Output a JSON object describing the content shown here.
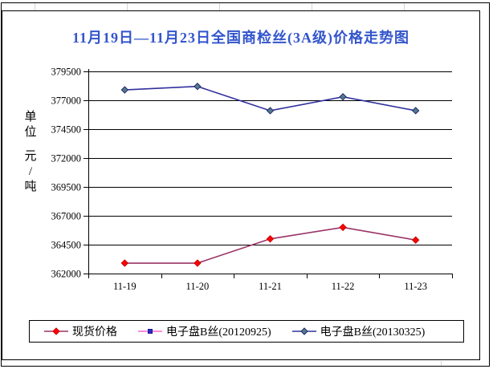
{
  "chart_data": {
    "type": "line",
    "title": "11月19日—11月23日全国商检丝(3A级)价格走势图",
    "title_color": "#3355CC",
    "ylabel": "单位 元/吨",
    "xlabel": "",
    "categories": [
      "11-19",
      "11-20",
      "11-21",
      "11-22",
      "11-23"
    ],
    "ylim": [
      362000,
      379500
    ],
    "yticks": [
      362000,
      364500,
      367000,
      369500,
      372000,
      374500,
      377000,
      379500
    ],
    "grid": "horizontal",
    "legend_position": "bottom",
    "series": [
      {
        "name": "现货价格",
        "values": [
          362900,
          362900,
          365000,
          366000,
          364900
        ],
        "line_color": "#993366",
        "marker": "diamond",
        "marker_fill": "#FF0000",
        "marker_edge": "#CC0000"
      },
      {
        "name": "电子盘B丝(20120925)",
        "values": [],
        "line_color": "#FF66CC",
        "marker": "square",
        "marker_fill": "#2A2ACD",
        "marker_edge": "#1A1A8C"
      },
      {
        "name": "电子盘B丝(20130325)",
        "values": [
          377900,
          378200,
          376100,
          377300,
          376100
        ],
        "line_color": "#30309E",
        "marker": "diamond",
        "marker_fill": "#4F7D8A",
        "marker_edge": "#26266E"
      }
    ]
  }
}
